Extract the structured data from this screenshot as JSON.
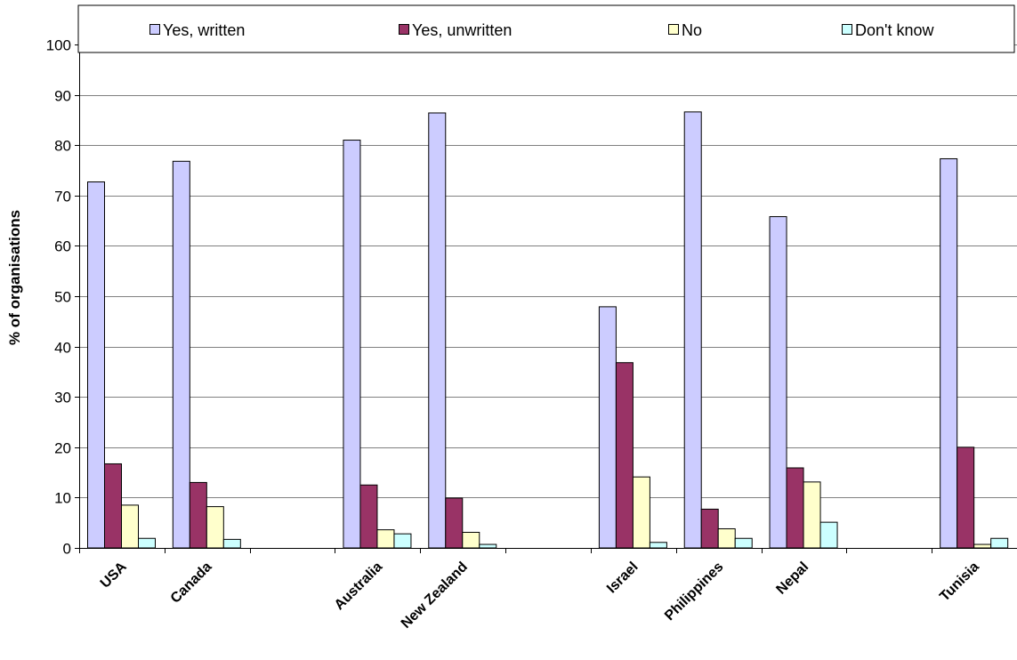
{
  "chart_data": {
    "type": "bar",
    "title": "",
    "xlabel": "",
    "ylabel": "% of organisations",
    "ylim": [
      0,
      100
    ],
    "yticks": [
      0,
      10,
      20,
      30,
      40,
      50,
      60,
      70,
      80,
      90,
      100
    ],
    "grid": true,
    "legend_position": "top",
    "categories": [
      "USA",
      "Canada",
      "",
      "Australia",
      "New Zealand",
      "",
      "Israel",
      "Philippines",
      "Nepal",
      "",
      "Tunisia"
    ],
    "series": [
      {
        "name": "Yes, written",
        "color": "#ccccff",
        "values": [
          72.7,
          76.8,
          null,
          81.0,
          86.4,
          null,
          47.9,
          86.6,
          65.8,
          null,
          77.3
        ]
      },
      {
        "name": "Yes, unwritten",
        "color": "#993366",
        "values": [
          16.7,
          13.0,
          null,
          12.5,
          9.9,
          null,
          36.8,
          7.7,
          15.9,
          null,
          20.0
        ]
      },
      {
        "name": "No",
        "color": "#ffffcc",
        "values": [
          8.5,
          8.2,
          null,
          3.6,
          3.1,
          null,
          14.1,
          3.8,
          13.1,
          null,
          0.7
        ]
      },
      {
        "name": "Don't know",
        "color": "#ccffff",
        "values": [
          1.9,
          1.7,
          null,
          2.8,
          0.7,
          null,
          1.1,
          1.9,
          5.1,
          null,
          1.9
        ]
      }
    ]
  }
}
